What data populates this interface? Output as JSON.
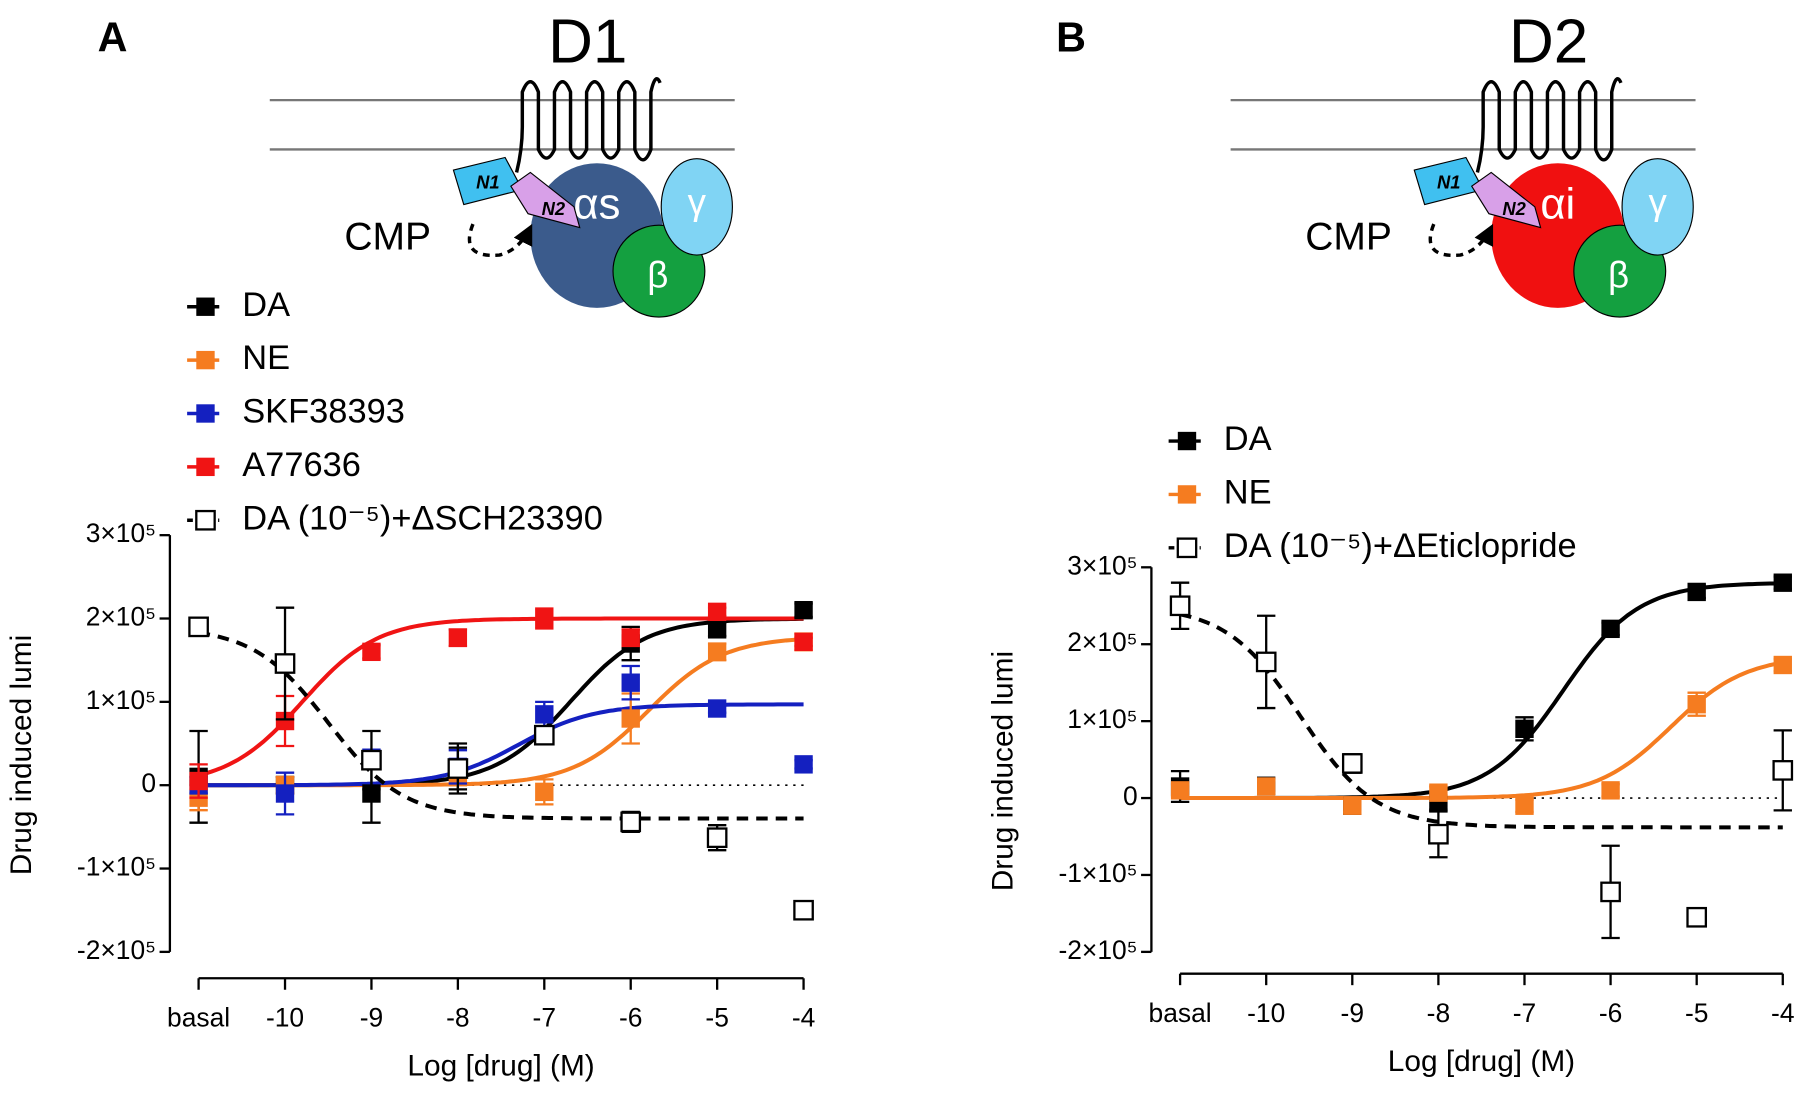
{
  "chart_data": [
    {
      "type": "scatter",
      "panel_label": "A",
      "diagram": {
        "title": "D1",
        "cmp": "CMP",
        "n1": "N1",
        "n2": "N2",
        "alpha": "αs",
        "beta": "β",
        "gamma": "γ",
        "alpha_color": "#3b5b8c"
      },
      "xlabel": "Log [drug] (M)",
      "ylabel": "Drug induced lumi",
      "xlim": [
        -11,
        -4
      ],
      "ylim": [
        -200000,
        300000
      ],
      "xticks": [
        {
          "value": -11,
          "label": "basal"
        },
        -10,
        -9,
        -8,
        -7,
        -6,
        -5,
        -4
      ],
      "yticks": [
        {
          "value": -200000,
          "label": "-2×10⁵"
        },
        {
          "value": -100000,
          "label": "-1×10⁵"
        },
        0,
        {
          "value": 100000,
          "label": "1×10⁵"
        },
        {
          "value": 200000,
          "label": "2×10⁵"
        },
        {
          "value": 300000,
          "label": "3×10⁵"
        }
      ],
      "x": [
        -11,
        -10,
        -9,
        -8,
        -7,
        -6,
        -5,
        -4
      ],
      "series": [
        {
          "name": "DA",
          "color": "#000000",
          "marker": "filled",
          "values": [
            10000,
            0,
            -10000,
            20000,
            60000,
            170000,
            187000,
            210000
          ],
          "errors": [
            55000,
            10000,
            35000,
            30000,
            10000,
            20000,
            8000,
            8000
          ],
          "fit": {
            "left": 0,
            "right": 200000,
            "log_ec50": -6.7
          }
        },
        {
          "name": "NE",
          "color": "#f57c20",
          "marker": "filled",
          "values": [
            -15000,
            0,
            30000,
            10000,
            -8000,
            80000,
            160000,
            172000
          ],
          "errors": [
            15000,
            10000,
            10000,
            10000,
            15000,
            30000,
            10000,
            10000
          ],
          "fit": {
            "left": 0,
            "right": 178000,
            "log_ec50": -5.8
          }
        },
        {
          "name": "SKF38393",
          "color": "#1420c0",
          "marker": "filled",
          "values": [
            0,
            -10000,
            33000,
            22000,
            85000,
            123000,
            92000,
            25000
          ],
          "errors": [
            10000,
            25000,
            8000,
            20000,
            15000,
            20000,
            5000,
            5000
          ],
          "fit": {
            "left": 0,
            "right": 97000,
            "log_ec50": -7.3
          }
        },
        {
          "name": "A77636",
          "color": "#f01414",
          "marker": "filled",
          "values": [
            5000,
            77000,
            160000,
            177000,
            200000,
            177000,
            208000,
            172000
          ],
          "errors": [
            20000,
            30000,
            8000,
            10000,
            12000,
            10000,
            5000,
            5000
          ],
          "fit": {
            "left": 0,
            "right": 200000,
            "log_ec50": -9.8
          }
        },
        {
          "name": "DA (10⁻⁵)+ΔSCH23390",
          "color": "#000000",
          "marker": "open",
          "values": [
            190000,
            146000,
            30000,
            20000,
            60000,
            -44000,
            -63000,
            -150000
          ],
          "errors": [
            5000,
            67000,
            35000,
            25000,
            10000,
            12000,
            15000,
            7000
          ],
          "fit": {
            "left": 190000,
            "right": -40000,
            "log_ec50": -9.5
          }
        }
      ]
    },
    {
      "type": "scatter",
      "panel_label": "B",
      "diagram": {
        "title": "D2",
        "cmp": "CMP",
        "n1": "N1",
        "n2": "N2",
        "alpha": "αi",
        "beta": "β",
        "gamma": "γ",
        "alpha_color": "#f01010"
      },
      "xlabel": "Log [drug] (M)",
      "ylabel": "Drug induced lumi",
      "xlim": [
        -11,
        -4
      ],
      "ylim": [
        -200000,
        300000
      ],
      "xticks": [
        {
          "value": -11,
          "label": "basal"
        },
        -10,
        -9,
        -8,
        -7,
        -6,
        -5,
        -4
      ],
      "yticks": [
        {
          "value": -200000,
          "label": "-2×10⁵"
        },
        {
          "value": -100000,
          "label": "-1×10⁵"
        },
        0,
        {
          "value": 100000,
          "label": "1×10⁵"
        },
        {
          "value": 200000,
          "label": "2×10⁵"
        },
        {
          "value": 300000,
          "label": "3×10⁵"
        }
      ],
      "x": [
        -11,
        -10,
        -9,
        -8,
        -7,
        -6,
        -5,
        -4
      ],
      "series": [
        {
          "name": "DA",
          "color": "#000000",
          "marker": "filled",
          "values": [
            15000,
            16000,
            -10000,
            -7000,
            90000,
            220000,
            268000,
            280000
          ],
          "errors": [
            20000,
            8000,
            8000,
            8000,
            15000,
            8000,
            8000,
            8000
          ],
          "fit": {
            "left": 0,
            "right": 280000,
            "log_ec50": -6.55
          }
        },
        {
          "name": "NE",
          "color": "#f57c20",
          "marker": "filled",
          "values": [
            10000,
            15000,
            -10000,
            7000,
            -10000,
            10000,
            122000,
            173000
          ],
          "errors": [
            8000,
            8000,
            8000,
            8000,
            8000,
            8000,
            15000,
            8000
          ],
          "fit": {
            "left": 0,
            "right": 185000,
            "log_ec50": -5.3
          }
        },
        {
          "name": "DA (10⁻⁵)+ΔEticlopride",
          "color": "#000000",
          "marker": "open",
          "values": [
            250000,
            177000,
            45000,
            -47000,
            null,
            -122000,
            -155000,
            36000
          ],
          "errors": [
            30000,
            60000,
            12000,
            30000,
            null,
            60000,
            10000,
            52000
          ],
          "fit": {
            "left": 250000,
            "right": -38000,
            "log_ec50": -9.6
          }
        }
      ]
    }
  ]
}
